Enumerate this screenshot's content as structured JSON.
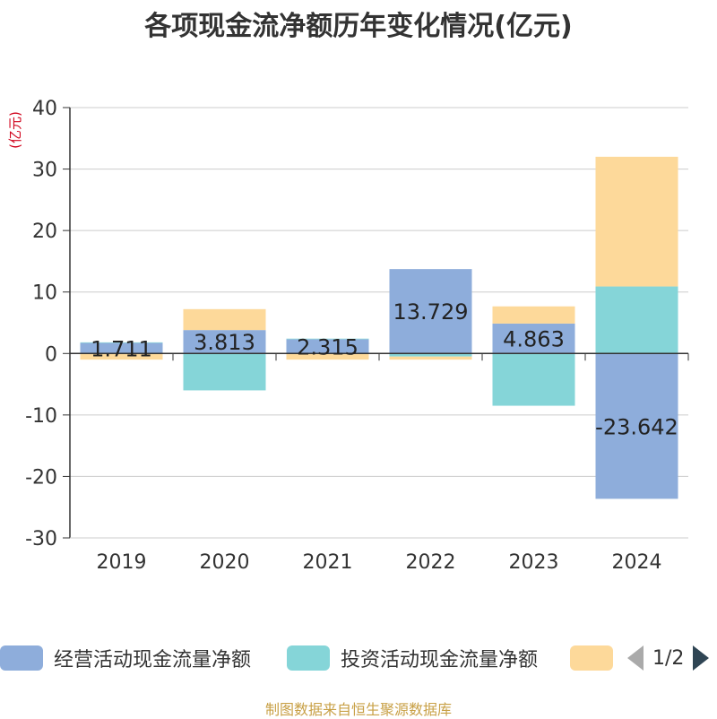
{
  "title": "各项现金流净额历年变化情况(亿元)",
  "source": "制图数据来自恒生聚源数据库",
  "pager": {
    "text": "1/2"
  },
  "legend": [
    {
      "label": "经营活动现金流量净额",
      "color": "#8eaddb"
    },
    {
      "label": "投资活动现金流量净额",
      "color": "#85d5d8"
    },
    {
      "label": "",
      "color": "#fdd99a"
    }
  ],
  "chart_data": {
    "type": "bar",
    "stacked": true,
    "ylabel": "(亿元)",
    "ylim": [
      -30,
      40
    ],
    "yticks": [
      40,
      30,
      20,
      10,
      0,
      -10,
      -20,
      -30
    ],
    "grid": true,
    "categories": [
      "2019",
      "2020",
      "2021",
      "2022",
      "2023",
      "2024"
    ],
    "series": [
      {
        "name": "经营活动现金流量净额",
        "color": "#8eaddb",
        "values": [
          1.711,
          3.813,
          2.315,
          13.729,
          4.863,
          -23.642
        ],
        "labels": [
          "1.711",
          "3.813",
          "2.315",
          "13.729",
          "4.863",
          "-23.642"
        ]
      },
      {
        "name": "投资活动现金流量净额",
        "color": "#85d5d8",
        "values": [
          0.1,
          -6.0,
          0.1,
          -0.5,
          -8.5,
          10.9
        ]
      },
      {
        "name": "",
        "color": "#fdd99a",
        "values": [
          -1.0,
          3.4,
          -1.0,
          -0.5,
          2.8,
          21.1
        ]
      }
    ]
  }
}
